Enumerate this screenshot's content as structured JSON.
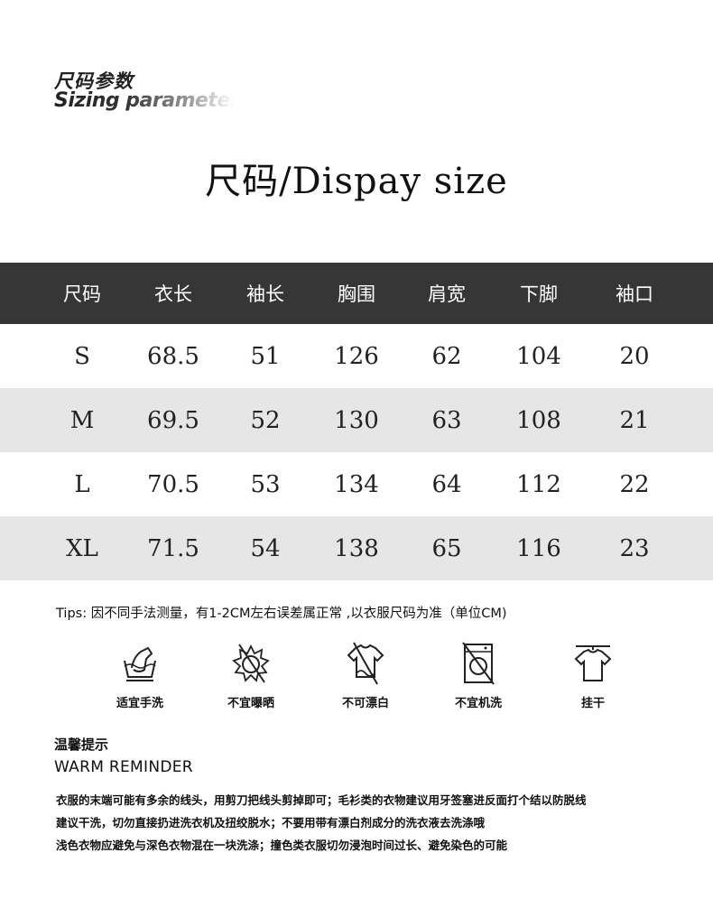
{
  "brand": {
    "title_cn": "尺码参数",
    "title_en": "Sizing parameter"
  },
  "title": "尺码/Dispay size",
  "table": {
    "headers": [
      "尺码",
      "衣长",
      "袖长",
      "胸围",
      "肩宽",
      "下脚",
      "袖口"
    ],
    "rows": [
      [
        "S",
        "68.5",
        "51",
        "126",
        "62",
        "104",
        "20"
      ],
      [
        "M",
        "69.5",
        "52",
        "130",
        "63",
        "108",
        "21"
      ],
      [
        "L",
        "70.5",
        "53",
        "134",
        "64",
        "112",
        "22"
      ],
      [
        "XL",
        "71.5",
        "54",
        "138",
        "65",
        "116",
        "23"
      ]
    ]
  },
  "tips": "Tips: 因不同手法测量，有1-2CM左右误差属正常 ,以衣服尺码为准（单位CM)",
  "care": [
    {
      "icon": "hand-wash-icon",
      "label": "适宜手洗"
    },
    {
      "icon": "no-sun-icon",
      "label": "不宜曝晒"
    },
    {
      "icon": "no-bleach-icon",
      "label": "不可漂白"
    },
    {
      "icon": "no-machine-wash-icon",
      "label": "不宜机洗"
    },
    {
      "icon": "hang-dry-icon",
      "label": "挂干"
    }
  ],
  "reminder": {
    "title_cn": "温馨提示",
    "title_en": "WARM REMINDER",
    "lines": [
      "衣服的末端可能有多余的线头，用剪刀把线头剪掉即可；毛衫类的衣物建议用牙签塞进反面打个结以防脱线",
      "建议干洗，切勿直接扔进洗衣机及扭绞脱水；不要用带有漂白剂成分的洗衣液去洗涤哦",
      "浅色衣物应避免与深色衣物混在一块洗涤；撞色类衣服切勿浸泡时间过长、避免染色的可能"
    ]
  },
  "colors": {
    "header_bg": "#363636",
    "stripe_bg": "#e6e6e6"
  }
}
